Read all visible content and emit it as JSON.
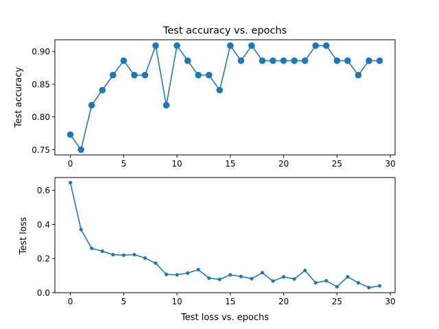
{
  "colors": {
    "series": "#1f77b4",
    "axes": "#000000",
    "background": "#ffffff"
  },
  "chart_data": [
    {
      "type": "line",
      "title": "Test accuracy vs. epochs",
      "xlabel": "",
      "ylabel": "Test accuracy",
      "marker": "large-circle",
      "grid": false,
      "xlim": [
        -1.45,
        30.45
      ],
      "ylim": [
        0.742,
        0.918
      ],
      "xticks": [
        0,
        5,
        10,
        15,
        20,
        25,
        30
      ],
      "xtick_labels": [
        "0",
        "5",
        "10",
        "15",
        "20",
        "25",
        "30"
      ],
      "yticks": [
        0.75,
        0.8,
        0.85,
        0.9
      ],
      "ytick_labels": [
        "0.75",
        "0.80",
        "0.85",
        "0.90"
      ],
      "x": [
        0,
        1,
        2,
        3,
        4,
        5,
        6,
        7,
        8,
        9,
        10,
        11,
        12,
        13,
        14,
        15,
        16,
        17,
        18,
        19,
        20,
        21,
        22,
        23,
        24,
        25,
        26,
        27,
        28,
        29
      ],
      "y": [
        0.773,
        0.75,
        0.818,
        0.841,
        0.864,
        0.886,
        0.864,
        0.864,
        0.909,
        0.818,
        0.909,
        0.886,
        0.864,
        0.864,
        0.841,
        0.909,
        0.886,
        0.909,
        0.886,
        0.886,
        0.886,
        0.886,
        0.886,
        0.909,
        0.909,
        0.886,
        0.886,
        0.864,
        0.886,
        0.886
      ]
    },
    {
      "type": "line",
      "title": "",
      "xlabel": "Test loss vs. epochs",
      "ylabel": "Test loss",
      "marker": "small-circle",
      "grid": false,
      "xlim": [
        -1.45,
        30.45
      ],
      "ylim": [
        0.0,
        0.675
      ],
      "xticks": [
        0,
        5,
        10,
        15,
        20,
        25,
        30
      ],
      "xtick_labels": [
        "0",
        "5",
        "10",
        "15",
        "20",
        "25",
        "30"
      ],
      "yticks": [
        0.0,
        0.2,
        0.4,
        0.6
      ],
      "ytick_labels": [
        "0.0",
        "0.2",
        "0.4",
        "0.6"
      ],
      "x": [
        0,
        1,
        2,
        3,
        4,
        5,
        6,
        7,
        8,
        9,
        10,
        11,
        12,
        13,
        14,
        15,
        16,
        17,
        18,
        19,
        20,
        21,
        22,
        23,
        24,
        25,
        26,
        27,
        28,
        29
      ],
      "y": [
        0.645,
        0.37,
        0.26,
        0.243,
        0.223,
        0.22,
        0.223,
        0.203,
        0.173,
        0.107,
        0.105,
        0.115,
        0.135,
        0.085,
        0.078,
        0.105,
        0.095,
        0.082,
        0.117,
        0.068,
        0.093,
        0.08,
        0.13,
        0.058,
        0.07,
        0.035,
        0.093,
        0.058,
        0.03,
        0.04
      ]
    }
  ]
}
